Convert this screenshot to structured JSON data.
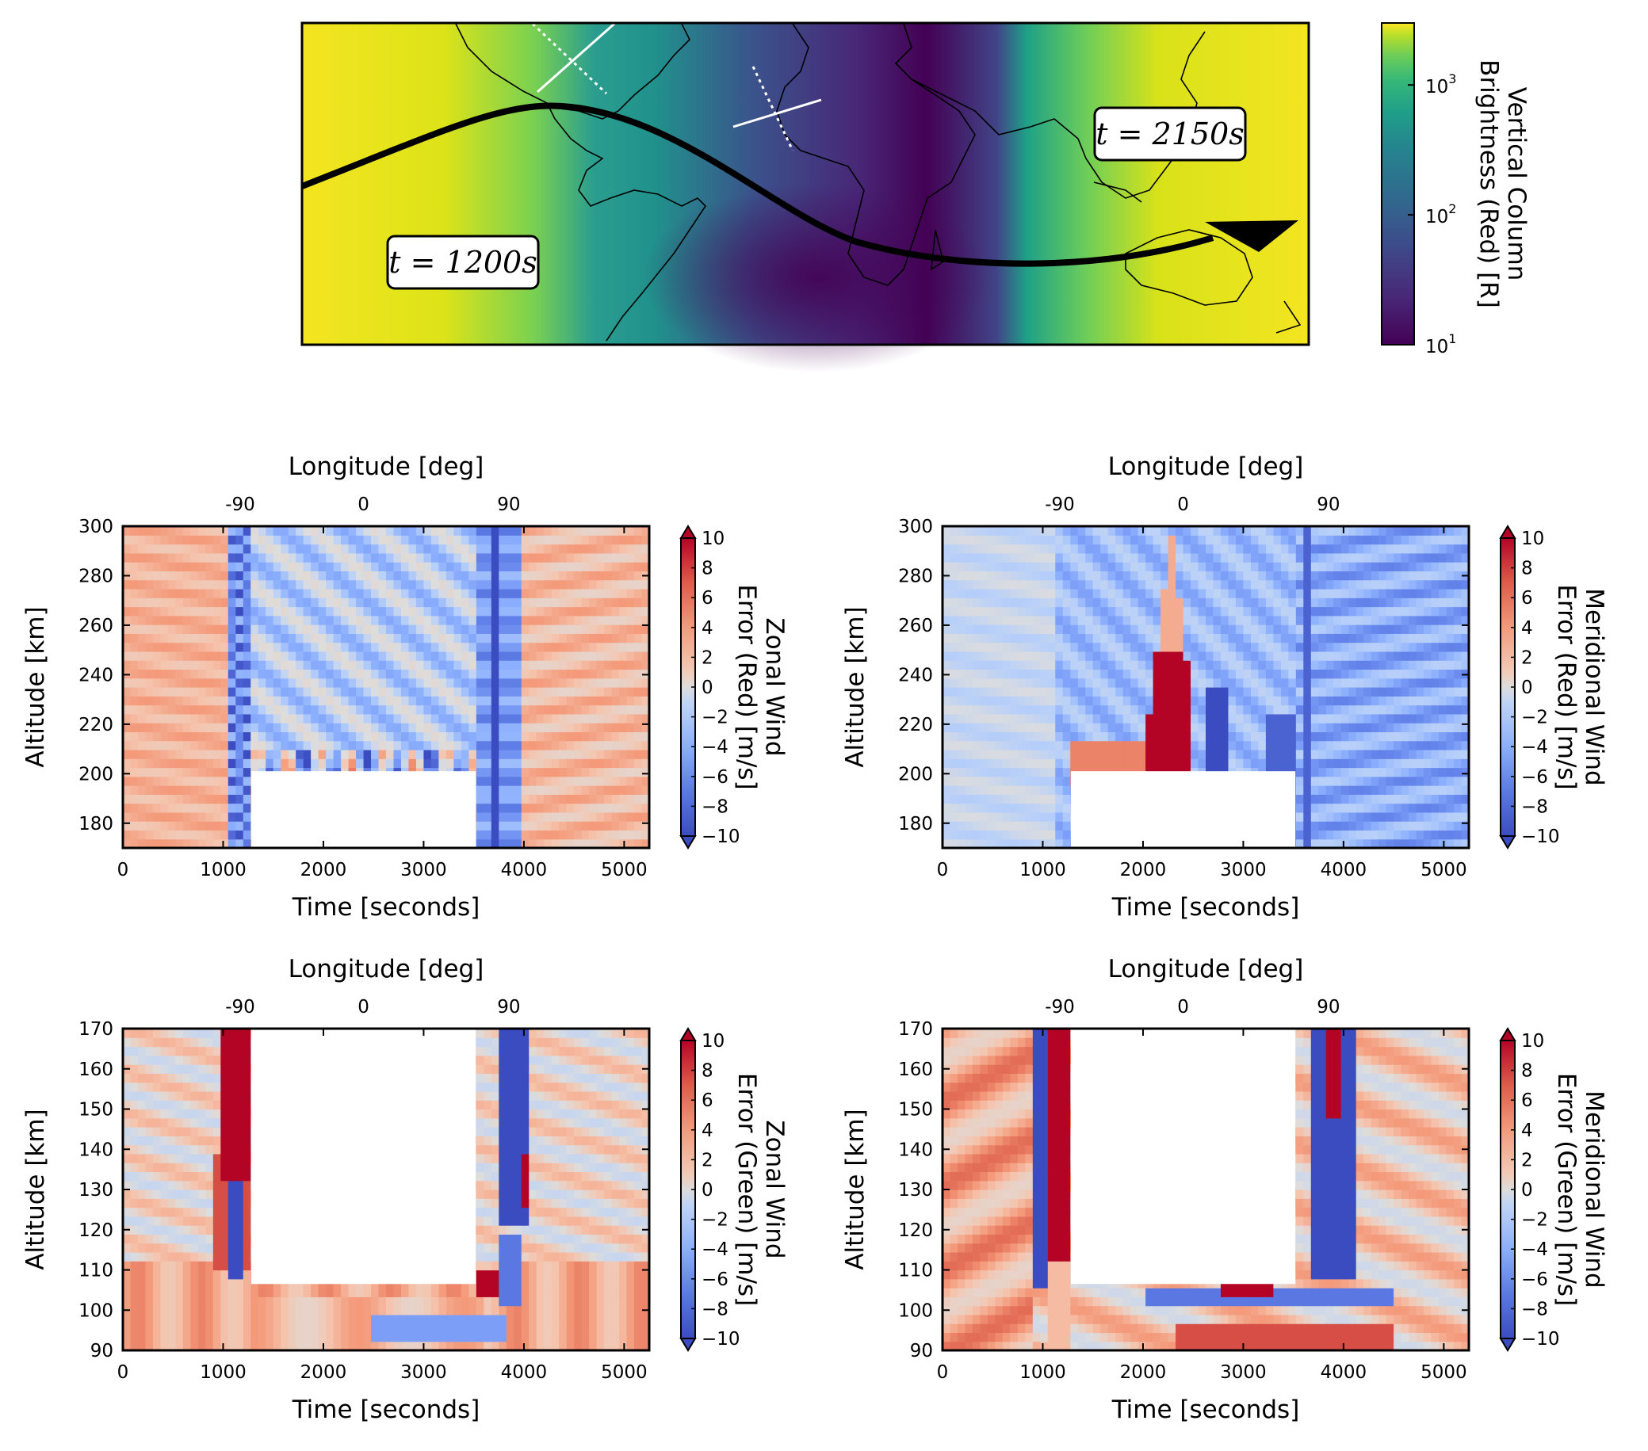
{
  "map_panel": {
    "label_start": "t = 1200s",
    "label_end": "t = 2150s",
    "colorbar": {
      "label_line1": "Vertical Column",
      "label_line2": "Brightness (Red) [R]",
      "ticks": [
        {
          "base": "10",
          "exp": "1",
          "value": 10
        },
        {
          "base": "10",
          "exp": "2",
          "value": 100
        },
        {
          "base": "10",
          "exp": "3",
          "value": 1000
        }
      ],
      "scale": "log",
      "range": [
        10,
        3000
      ],
      "colormap": "viridis"
    }
  },
  "chart_data": [
    {
      "type": "heatmap",
      "panel": "top-left",
      "xlabel": "Time [seconds]",
      "ylabel": "Altitude [km]",
      "top_xlabel": "Longitude [deg]",
      "xlim": [
        0,
        5250
      ],
      "ylim": [
        170,
        300
      ],
      "xticks": [
        0,
        1000,
        2000,
        3000,
        4000,
        5000
      ],
      "yticks": [
        180,
        200,
        220,
        240,
        260,
        280,
        300
      ],
      "top_ticks": [
        {
          "label": "-90",
          "time": 1170
        },
        {
          "label": "0",
          "time": 2400
        },
        {
          "label": "90",
          "time": 3850
        }
      ],
      "masked_region": {
        "t": [
          1280,
          3520
        ],
        "alt": [
          170,
          201
        ]
      },
      "colorbar": {
        "label_line1": "Zonal Wind",
        "label_line2": "Error (Red) [m/s]",
        "range": [
          -10,
          10
        ],
        "ticks": [
          "10",
          "8",
          "6",
          "4",
          "2",
          "0",
          "−2",
          "−4",
          "−6",
          "−8",
          "−10"
        ],
        "colormap": "coolwarm"
      }
    },
    {
      "type": "heatmap",
      "panel": "top-right",
      "xlabel": "Time [seconds]",
      "ylabel": "Altitude [km]",
      "top_xlabel": "Longitude [deg]",
      "xlim": [
        0,
        5250
      ],
      "ylim": [
        170,
        300
      ],
      "xticks": [
        0,
        1000,
        2000,
        3000,
        4000,
        5000
      ],
      "yticks": [
        180,
        200,
        220,
        240,
        260,
        280,
        300
      ],
      "top_ticks": [
        {
          "label": "-90",
          "time": 1170
        },
        {
          "label": "0",
          "time": 2400
        },
        {
          "label": "90",
          "time": 3850
        }
      ],
      "masked_region": {
        "t": [
          1280,
          3520
        ],
        "alt": [
          170,
          201
        ]
      },
      "colorbar": {
        "label_line1": "Meridional Wind",
        "label_line2": "Error (Red) [m/s]",
        "range": [
          -10,
          10
        ],
        "ticks": [
          "10",
          "8",
          "6",
          "4",
          "2",
          "0",
          "−2",
          "−4",
          "−6",
          "−8",
          "−10"
        ],
        "colormap": "coolwarm"
      }
    },
    {
      "type": "heatmap",
      "panel": "bottom-left",
      "xlabel": "Time [seconds]",
      "ylabel": "Altitude [km]",
      "top_xlabel": "Longitude [deg]",
      "xlim": [
        0,
        5250
      ],
      "ylim": [
        90,
        170
      ],
      "xticks": [
        0,
        1000,
        2000,
        3000,
        4000,
        5000
      ],
      "yticks": [
        90,
        100,
        110,
        120,
        130,
        140,
        150,
        160,
        170
      ],
      "top_ticks": [
        {
          "label": "-90",
          "time": 1170
        },
        {
          "label": "0",
          "time": 2400
        },
        {
          "label": "90",
          "time": 3850
        }
      ],
      "masked_region": {
        "t": [
          1280,
          3520
        ],
        "alt": [
          106.5,
          170
        ]
      },
      "colorbar": {
        "label_line1": "Zonal Wind",
        "label_line2": "Error (Green) [m/s]",
        "range": [
          -10,
          10
        ],
        "ticks": [
          "10",
          "8",
          "6",
          "4",
          "2",
          "0",
          "−2",
          "−4",
          "−6",
          "−8",
          "−10"
        ],
        "colormap": "coolwarm"
      }
    },
    {
      "type": "heatmap",
      "panel": "bottom-right",
      "xlabel": "Time [seconds]",
      "ylabel": "Altitude [km]",
      "top_xlabel": "Longitude [deg]",
      "xlim": [
        0,
        5250
      ],
      "ylim": [
        90,
        170
      ],
      "xticks": [
        0,
        1000,
        2000,
        3000,
        4000,
        5000
      ],
      "yticks": [
        90,
        100,
        110,
        120,
        130,
        140,
        150,
        160,
        170
      ],
      "top_ticks": [
        {
          "label": "-90",
          "time": 1170
        },
        {
          "label": "0",
          "time": 2400
        },
        {
          "label": "90",
          "time": 3850
        }
      ],
      "masked_region": {
        "t": [
          1280,
          3520
        ],
        "alt": [
          106.5,
          170
        ]
      },
      "colorbar": {
        "label_line1": "Meridional Wind",
        "label_line2": "Error (Green) [m/s]",
        "range": [
          -10,
          10
        ],
        "ticks": [
          "10",
          "8",
          "6",
          "4",
          "2",
          "0",
          "−2",
          "−4",
          "−6",
          "−8",
          "−10"
        ],
        "colormap": "coolwarm"
      }
    }
  ]
}
